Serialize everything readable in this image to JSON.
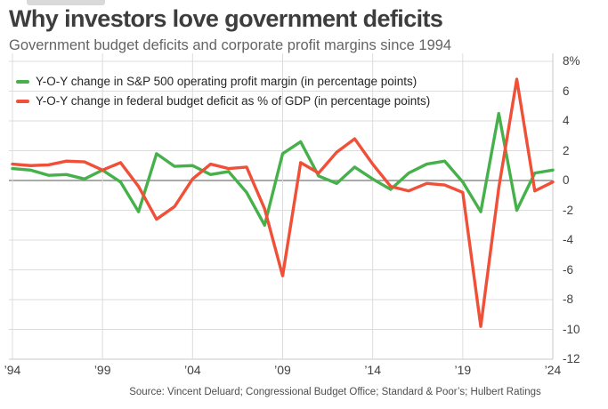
{
  "header": {
    "title": "Why investors love government deficits",
    "subtitle": "Government budget deficits and corporate profit margins since 1994"
  },
  "legend": {
    "items": [
      {
        "label": "Y-O-Y change in S&P 500 operating profit margin (in percentage points)",
        "color": "#46b14b"
      },
      {
        "label": "Y-O-Y change in federal budget deficit as % of GDP (in percentage points)",
        "color": "#f04f38"
      }
    ]
  },
  "source": "Source: Vincent Deluard; Congressional Budget Office; Standard & Poor’s; Hulbert Ratings",
  "colors": {
    "green_line": "#46b14b",
    "red_line": "#f04f38",
    "grid": "#dcdcdc",
    "zero_line": "#8e8e8e",
    "border": "#c9c9c9",
    "title": "#3d3d3d",
    "subtitle": "#646464",
    "tick_label": "#404040",
    "source_text": "#4e4e4e"
  },
  "chart_data": {
    "type": "line",
    "title": "Why investors love government deficits",
    "subtitle": "Government budget deficits and corporate profit margins since 1994",
    "xlabel": "",
    "ylabel": "",
    "xlim": [
      1994,
      2024
    ],
    "ylim": [
      -12,
      8
    ],
    "grid": true,
    "zero_line": true,
    "legend_position": "top-left",
    "x": [
      1994,
      1995,
      1996,
      1997,
      1998,
      1999,
      2000,
      2001,
      2002,
      2003,
      2004,
      2005,
      2006,
      2007,
      2008,
      2009,
      2010,
      2011,
      2012,
      2013,
      2014,
      2015,
      2016,
      2017,
      2018,
      2019,
      2020,
      2021,
      2022,
      2023,
      2024
    ],
    "series": [
      {
        "name": "Y-O-Y change in S&P 500 operating profit margin (in percentage points)",
        "color": "#46b14b",
        "values": [
          0.8,
          0.7,
          0.35,
          0.4,
          0.1,
          0.7,
          -0.1,
          -2.1,
          1.8,
          0.95,
          1.0,
          0.4,
          0.6,
          -0.8,
          -3.0,
          1.8,
          2.6,
          0.3,
          -0.2,
          0.9,
          0.1,
          -0.6,
          0.5,
          1.1,
          1.3,
          -0.1,
          -2.1,
          4.5,
          -2.0,
          0.5,
          0.7
        ]
      },
      {
        "name": "Y-O-Y change in federal budget deficit as % of GDP (in percentage points)",
        "color": "#f04f38",
        "values": [
          1.1,
          1.0,
          1.05,
          1.3,
          1.25,
          0.7,
          1.2,
          -0.4,
          -2.6,
          -1.75,
          0.1,
          1.1,
          0.8,
          0.9,
          -1.9,
          -6.4,
          1.2,
          0.5,
          1.9,
          2.8,
          1.1,
          -0.4,
          -0.7,
          -0.2,
          -0.3,
          -0.8,
          -9.8,
          -0.5,
          6.8,
          -0.7,
          -0.1
        ]
      }
    ],
    "yticks": [
      {
        "v": 8,
        "label": "8%"
      },
      {
        "v": 6,
        "label": "6"
      },
      {
        "v": 4,
        "label": "4"
      },
      {
        "v": 2,
        "label": "2"
      },
      {
        "v": 0,
        "label": "0"
      },
      {
        "v": -2,
        "label": "-2"
      },
      {
        "v": -4,
        "label": "-4"
      },
      {
        "v": -6,
        "label": "-6"
      },
      {
        "v": -8,
        "label": "-8"
      },
      {
        "v": -10,
        "label": "-10"
      },
      {
        "v": -12,
        "label": "-12"
      }
    ],
    "xticks": [
      {
        "v": 1994,
        "label": "’94"
      },
      {
        "v": 1999,
        "label": "’99"
      },
      {
        "v": 2004,
        "label": "’04"
      },
      {
        "v": 2009,
        "label": "’09"
      },
      {
        "v": 2014,
        "label": "’14"
      },
      {
        "v": 2019,
        "label": "’19"
      },
      {
        "v": 2024,
        "label": "’24"
      }
    ]
  }
}
